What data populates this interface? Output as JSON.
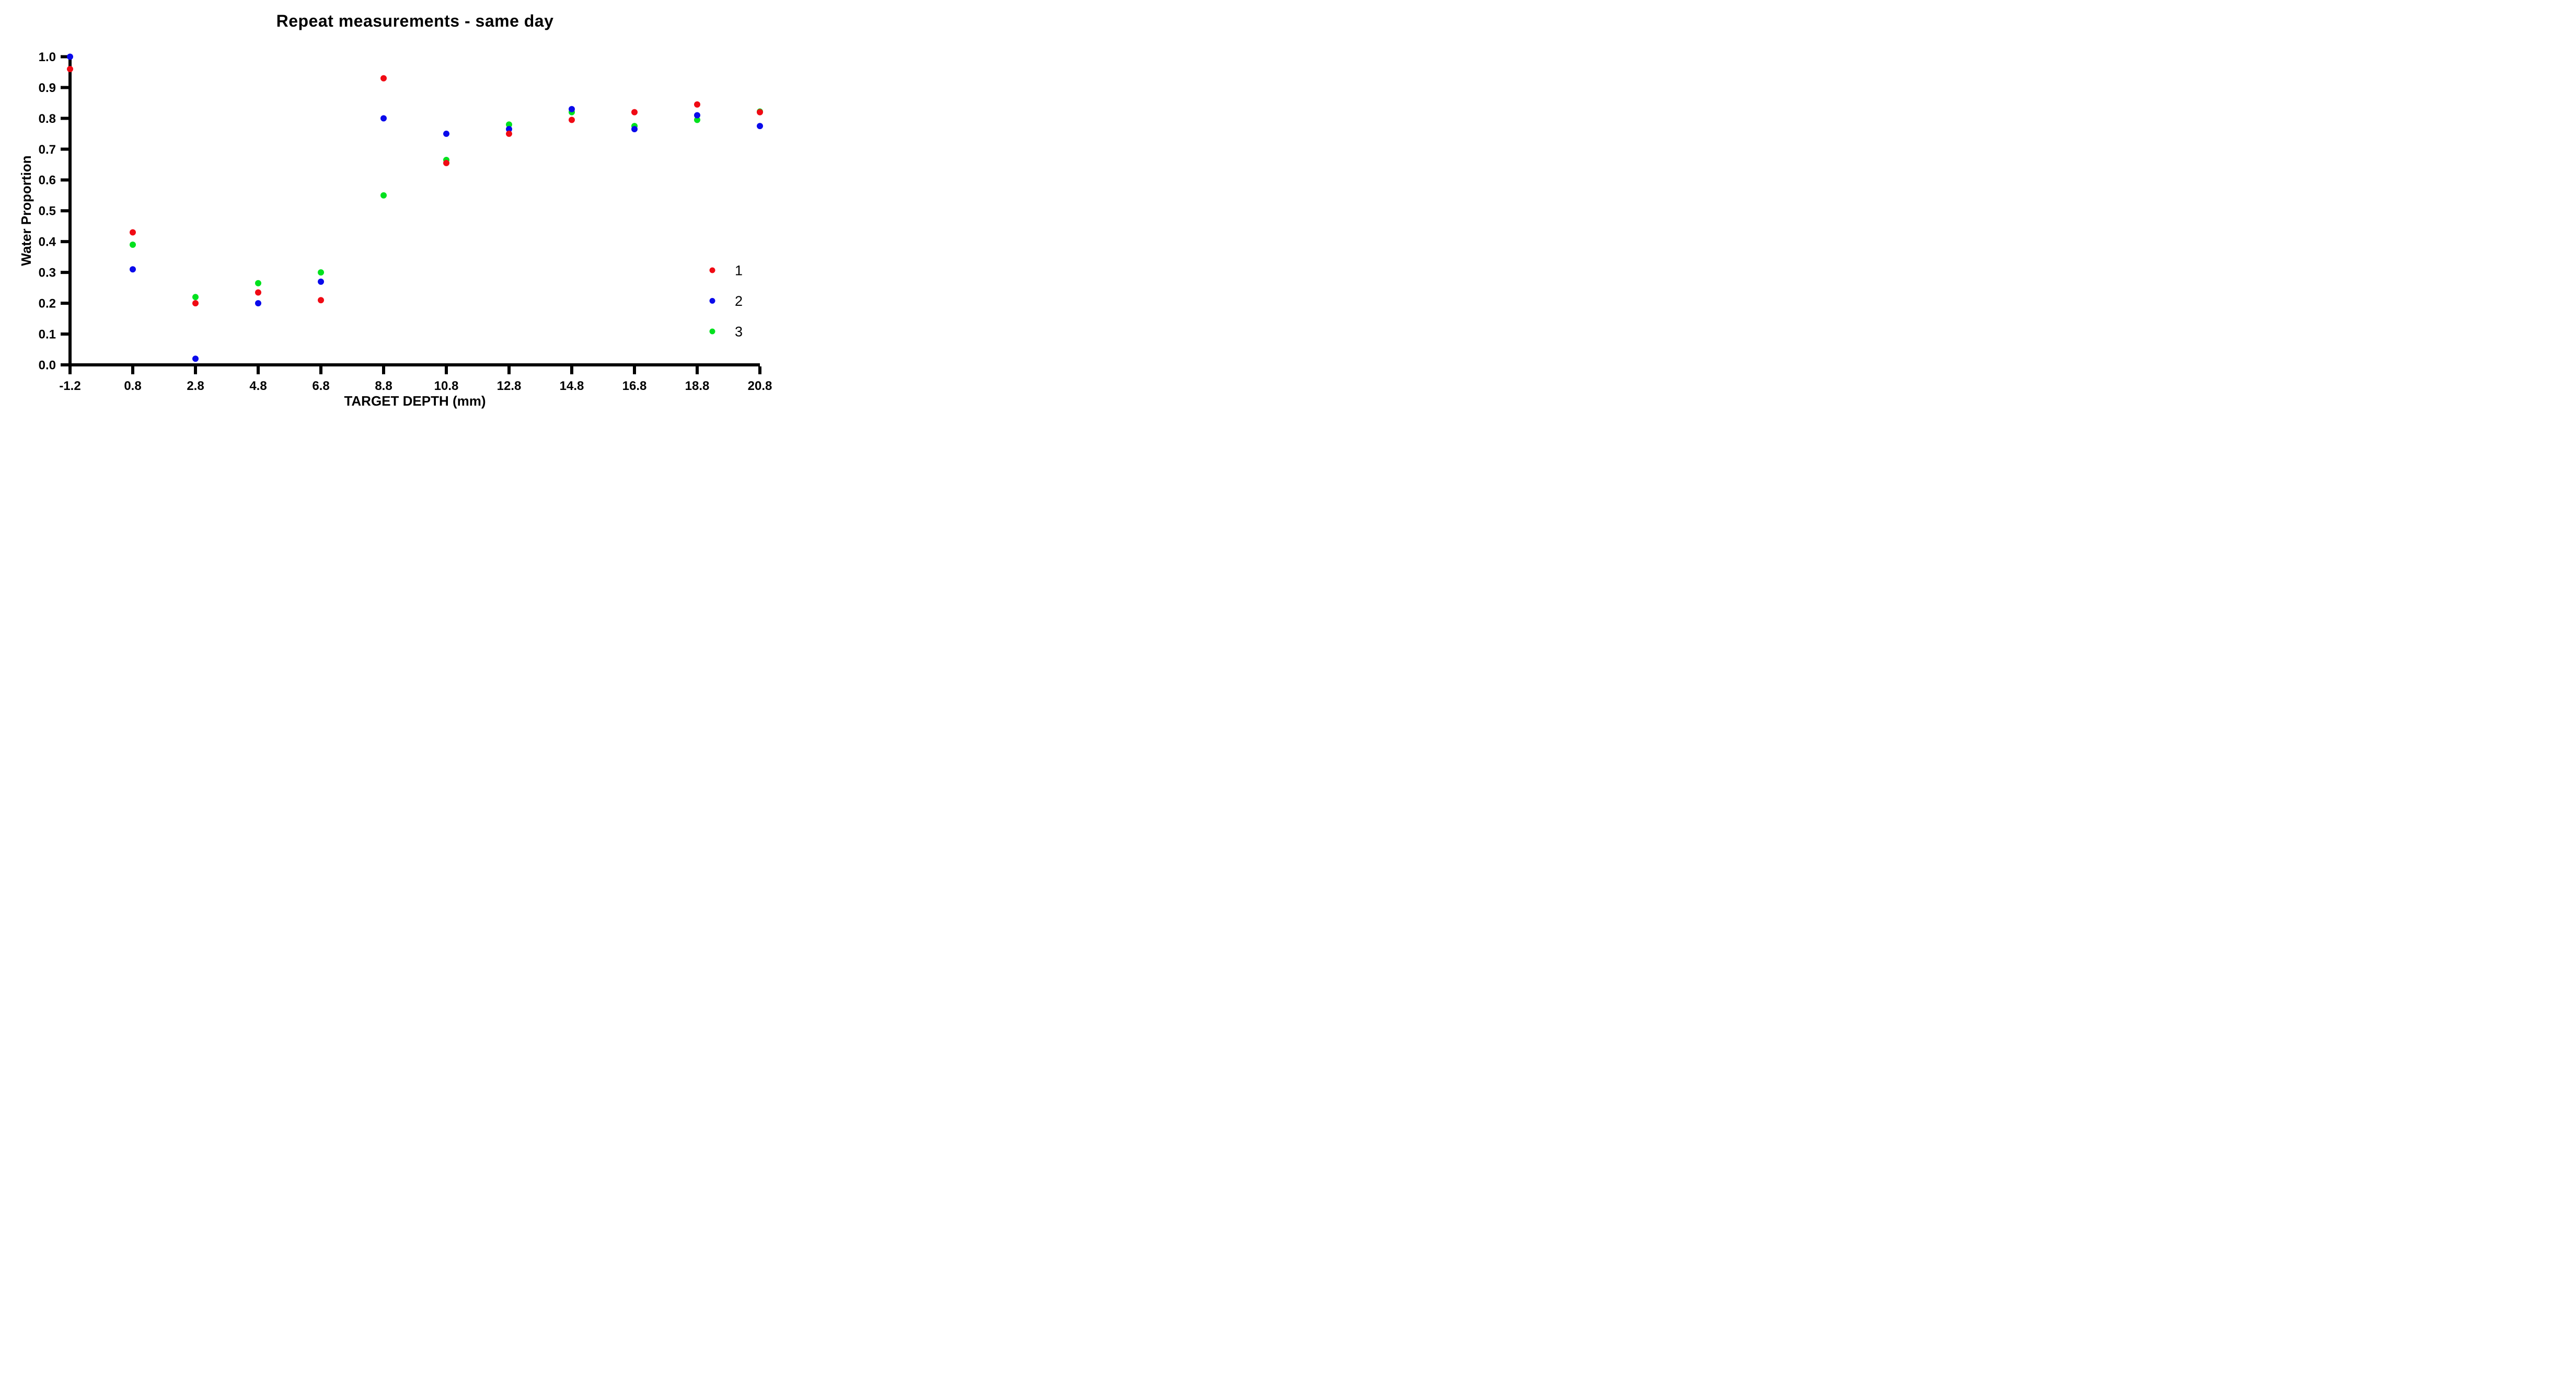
{
  "chart_data": {
    "type": "scatter",
    "title": "Repeat measurements - same day",
    "xlabel": "TARGET DEPTH (mm)",
    "ylabel": "Water Proportion",
    "x": [
      -1.2,
      0.8,
      2.8,
      4.8,
      6.8,
      8.8,
      10.8,
      12.8,
      14.8,
      16.8,
      18.8,
      20.8
    ],
    "x_tick_labels": [
      "-1.2",
      "0.8",
      "2.8",
      "4.8",
      "6.8",
      "8.8",
      "10.8",
      "12.8",
      "14.8",
      "16.8",
      "18.8",
      "20.8"
    ],
    "y_ticks": [
      0.0,
      0.1,
      0.2,
      0.3,
      0.4,
      0.5,
      0.6,
      0.7,
      0.8,
      0.9,
      1.0
    ],
    "y_tick_labels": [
      "0.0",
      "0.1",
      "0.2",
      "0.3",
      "0.4",
      "0.5",
      "0.6",
      "0.7",
      "0.8",
      "0.9",
      "1.0"
    ],
    "xlim": [
      -1.2,
      20.8
    ],
    "ylim": [
      0.0,
      1.0
    ],
    "grid": false,
    "axis_color": "#000000",
    "legend_position": "right-lower",
    "series": [
      {
        "name": "1",
        "color": "#F00A14",
        "values": [
          0.96,
          0.43,
          0.2,
          0.235,
          0.21,
          0.93,
          0.655,
          0.75,
          0.795,
          0.82,
          0.845,
          0.82
        ]
      },
      {
        "name": "2",
        "color": "#0A0AEB",
        "values": [
          1.0,
          0.31,
          0.02,
          0.2,
          0.27,
          0.8,
          0.75,
          0.765,
          0.83,
          0.765,
          0.81,
          0.775
        ]
      },
      {
        "name": "3",
        "color": "#00E11E",
        "values": [
          null,
          0.39,
          0.22,
          0.265,
          0.3,
          0.55,
          0.665,
          0.78,
          0.82,
          0.775,
          0.795,
          0.822
        ]
      }
    ]
  }
}
